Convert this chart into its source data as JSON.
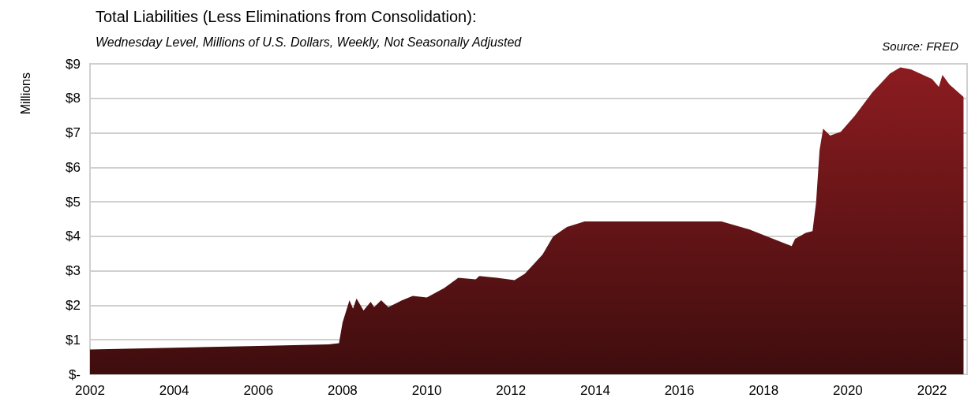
{
  "chart_data": {
    "type": "area",
    "title": "Total Liabilities (Less Eliminations from Consolidation):",
    "subtitle": "Wednesday Level, Millions of U.S. Dollars, Weekly, Not Seasonally Adjusted",
    "ylabel": "Millions",
    "annotations": [
      "Source: FRED"
    ],
    "x": [
      "2002-01",
      "2004-01",
      "2006-01",
      "2007-09",
      "2007-12",
      "2008-01",
      "2008-03",
      "2008-04",
      "2008-05",
      "2008-07",
      "2008-09",
      "2008-10",
      "2008-12",
      "2009-02",
      "2009-06",
      "2009-09",
      "2010-01",
      "2010-06",
      "2010-10",
      "2011-03",
      "2011-04",
      "2011-09",
      "2012-02",
      "2012-05",
      "2012-10",
      "2013-01",
      "2013-05",
      "2013-10",
      "2015-06",
      "2017-01",
      "2017-09",
      "2018-05",
      "2018-09",
      "2018-10",
      "2019-01",
      "2019-03",
      "2019-04",
      "2019-05",
      "2019-06",
      "2019-08",
      "2019-11",
      "2020-03",
      "2020-08",
      "2021-01",
      "2021-04",
      "2021-07",
      "2022-01",
      "2022-03",
      "2022-04",
      "2022-06",
      "2022-10"
    ],
    "values": [
      0.72,
      0.77,
      0.82,
      0.87,
      0.9,
      1.5,
      2.15,
      1.9,
      2.2,
      1.85,
      2.1,
      1.95,
      2.15,
      1.95,
      2.15,
      2.27,
      2.23,
      2.5,
      2.8,
      2.75,
      2.85,
      2.8,
      2.73,
      2.92,
      3.47,
      4.0,
      4.27,
      4.43,
      4.43,
      4.43,
      4.2,
      3.88,
      3.72,
      3.93,
      4.1,
      4.15,
      4.98,
      6.5,
      7.12,
      6.92,
      7.03,
      7.49,
      8.17,
      8.72,
      8.9,
      8.84,
      8.56,
      8.33,
      8.68,
      8.4,
      8.04
    ],
    "color": "#8b1c20",
    "xlim": [
      "2002-01",
      "2022-11"
    ],
    "xticks": [
      "2002",
      "2004",
      "2006",
      "2008",
      "2010",
      "2012",
      "2014",
      "2016",
      "2018",
      "2020",
      "2022"
    ],
    "ylim": [
      0,
      9
    ],
    "yticks": [
      {
        "value": 0,
        "label": "$-"
      },
      {
        "value": 1,
        "label": "$1"
      },
      {
        "value": 2,
        "label": "$2"
      },
      {
        "value": 3,
        "label": "$3"
      },
      {
        "value": 4,
        "label": "$4"
      },
      {
        "value": 5,
        "label": "$5"
      },
      {
        "value": 6,
        "label": "$6"
      },
      {
        "value": 7,
        "label": "$7"
      },
      {
        "value": 8,
        "label": "$8"
      },
      {
        "value": 9,
        "label": "$9"
      }
    ],
    "grid": "y",
    "marker": "none"
  }
}
